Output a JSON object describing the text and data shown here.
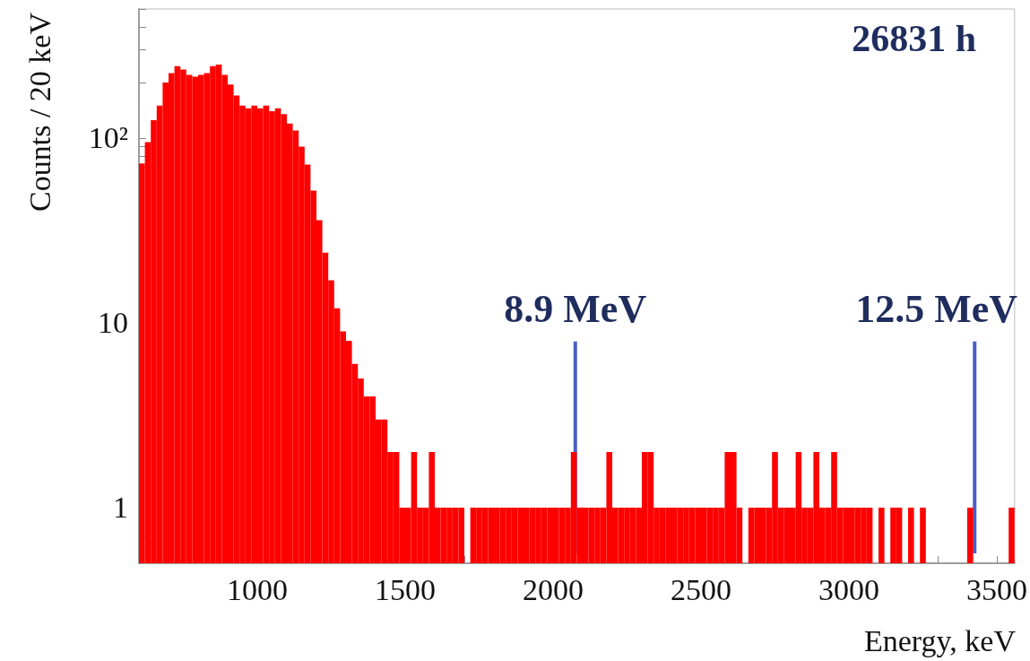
{
  "chart_data": {
    "type": "histogram",
    "xlabel": "Energy, keV",
    "ylabel": "Counts / 20 keV",
    "annotations": [
      "26831 h"
    ],
    "bins": [
      600,
      620,
      640,
      660,
      680,
      700,
      720,
      740,
      760,
      780,
      800,
      820,
      840,
      860,
      880,
      900,
      920,
      940,
      960,
      980,
      1000,
      1020,
      1040,
      1060,
      1080,
      1100,
      1120,
      1140,
      1160,
      1180,
      1200,
      1220,
      1240,
      1260,
      1280,
      1300,
      1320,
      1340,
      1360,
      1380,
      1400,
      1420,
      1440,
      1460,
      1480,
      1500,
      1520,
      1540,
      1560,
      1580,
      1600,
      1620,
      1640,
      1660,
      1680,
      1700,
      1720,
      1740,
      1760,
      1780,
      1800,
      1820,
      1840,
      1860,
      1880,
      1900,
      1920,
      1940,
      1960,
      1980,
      2000,
      2020,
      2040,
      2060,
      2080,
      2100,
      2120,
      2140,
      2160,
      2180,
      2200,
      2220,
      2240,
      2260,
      2280,
      2300,
      2320,
      2340,
      2360,
      2380,
      2400,
      2420,
      2440,
      2460,
      2480,
      2500,
      2520,
      2540,
      2560,
      2580,
      2600,
      2620,
      2640,
      2660,
      2680,
      2700,
      2720,
      2740,
      2760,
      2780,
      2800,
      2820,
      2840,
      2860,
      2880,
      2900,
      2920,
      2940,
      2960,
      2980,
      3000,
      3020,
      3040,
      3060,
      3080,
      3100,
      3120,
      3140,
      3160,
      3180,
      3200,
      3220,
      3240,
      3260,
      3280,
      3300,
      3320,
      3340,
      3360,
      3380,
      3400,
      3420,
      3440,
      3460,
      3480,
      3500,
      3520,
      3540,
      3560
    ],
    "values": [
      73,
      95,
      125,
      150,
      200,
      225,
      245,
      235,
      220,
      215,
      220,
      225,
      245,
      250,
      220,
      195,
      170,
      150,
      145,
      150,
      145,
      150,
      140,
      145,
      135,
      120,
      110,
      90,
      72,
      52,
      36,
      24,
      17,
      12,
      9,
      8,
      6,
      5,
      4,
      4,
      3,
      3,
      2,
      2,
      1,
      1,
      2,
      1,
      1,
      2,
      1,
      1,
      1,
      1,
      1,
      null,
      1,
      1,
      1,
      1,
      1,
      1,
      1,
      1,
      1,
      1,
      1,
      1,
      1,
      1,
      1,
      1,
      1,
      2,
      1,
      1,
      1,
      1,
      1,
      2,
      1,
      1,
      1,
      1,
      1,
      2,
      2,
      1,
      1,
      1,
      1,
      1,
      1,
      1,
      1,
      1,
      1,
      1,
      1,
      2,
      2,
      1,
      null,
      1,
      1,
      1,
      1,
      2,
      1,
      1,
      1,
      2,
      1,
      1,
      2,
      1,
      1,
      2,
      1,
      1,
      1,
      1,
      1,
      1,
      null,
      1,
      null,
      1,
      1,
      null,
      1,
      null,
      1,
      null,
      null,
      null,
      null,
      null,
      null,
      null,
      1,
      null,
      null,
      null,
      null,
      null,
      null,
      1
    ],
    "color": "#ff0000",
    "log": "y",
    "grid": false,
    "xlim": [
      600,
      3560
    ],
    "xticks": [
      {
        "value": 700,
        "label": null
      },
      {
        "value": 800,
        "label": null
      },
      {
        "value": 900,
        "label": null
      },
      1000,
      {
        "value": 1100,
        "label": null
      },
      {
        "value": 1200,
        "label": null
      },
      {
        "value": 1300,
        "label": null
      },
      {
        "value": 1400,
        "label": null
      },
      1500,
      {
        "value": 1600,
        "label": null
      },
      {
        "value": 1700,
        "label": null
      },
      {
        "value": 1800,
        "label": null
      },
      {
        "value": 1900,
        "label": null
      },
      2000,
      {
        "value": 2100,
        "label": null
      },
      {
        "value": 2200,
        "label": null
      },
      {
        "value": 2300,
        "label": null
      },
      {
        "value": 2400,
        "label": null
      },
      2500,
      {
        "value": 2600,
        "label": null
      },
      {
        "value": 2700,
        "label": null
      },
      {
        "value": 2800,
        "label": null
      },
      {
        "value": 2900,
        "label": null
      },
      3000,
      {
        "value": 3100,
        "label": null
      },
      {
        "value": 3200,
        "label": null
      },
      {
        "value": 3300,
        "label": null
      },
      {
        "value": 3400,
        "label": null
      },
      3500
    ],
    "ylim": [
      0.5,
      500
    ],
    "yticks": [
      {
        "value": 0.6,
        "label": null
      },
      {
        "value": 0.7,
        "label": null
      },
      {
        "value": 0.8,
        "label": null
      },
      {
        "value": 0.9,
        "label": null
      },
      1,
      {
        "value": 2,
        "label": null
      },
      {
        "value": 3,
        "label": null
      },
      {
        "value": 4,
        "label": null
      },
      {
        "value": 5,
        "label": null
      },
      {
        "value": 6,
        "label": null
      },
      {
        "value": 7,
        "label": null
      },
      {
        "value": 8,
        "label": null
      },
      {
        "value": 9,
        "label": null
      },
      10,
      {
        "value": 20,
        "label": null
      },
      {
        "value": 30,
        "label": null
      },
      {
        "value": 40,
        "label": null
      },
      {
        "value": 50,
        "label": null
      },
      {
        "value": 60,
        "label": null
      },
      {
        "value": 70,
        "label": null
      },
      {
        "value": 80,
        "label": null
      },
      {
        "value": 90,
        "label": null
      },
      {
        "value": 100,
        "label": "10²"
      },
      {
        "value": 200,
        "label": null
      },
      {
        "value": 300,
        "label": null
      },
      {
        "value": 400,
        "label": null
      },
      {
        "value": 500,
        "label": null
      }
    ],
    "ref_lines": [
      {
        "axis": "x",
        "value": 2075,
        "label": "8.9 MeV",
        "color": "#4a5fc8"
      },
      {
        "axis": "x",
        "value": 3425,
        "label": "12.5 MeV",
        "color": "#4a5fc8"
      }
    ]
  }
}
